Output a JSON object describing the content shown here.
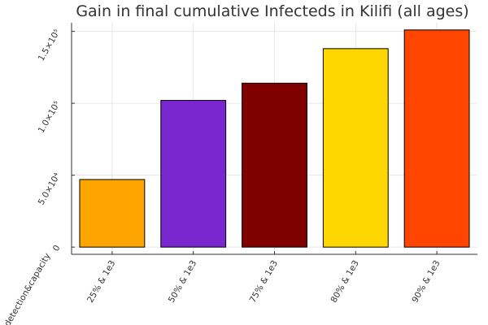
{
  "chart_data": {
    "type": "bar",
    "title": "Gain in final cumulative Infecteds in Kilifi (all ages)",
    "xlabel": "detection&capacity",
    "ylabel": "",
    "categories": [
      "25% & 1e3",
      "50% & 1e3",
      "75% & 1e3",
      "80% & 1e3",
      "90% & 1e3"
    ],
    "values": [
      47000,
      102000,
      114000,
      138000,
      151000
    ],
    "colors": [
      "#FFA500",
      "#7B27D0",
      "#800000",
      "#FFD700",
      "#FF4500"
    ],
    "ylim": [
      -5000,
      156000
    ],
    "y_ticks": [
      {
        "value": 0,
        "label": "0"
      },
      {
        "value": 50000,
        "label": "5.0×10⁴"
      },
      {
        "value": 100000,
        "label": "1.0×10⁵"
      },
      {
        "value": 150000,
        "label": "1.5×10⁵"
      }
    ],
    "grid": true,
    "legend": "none"
  }
}
